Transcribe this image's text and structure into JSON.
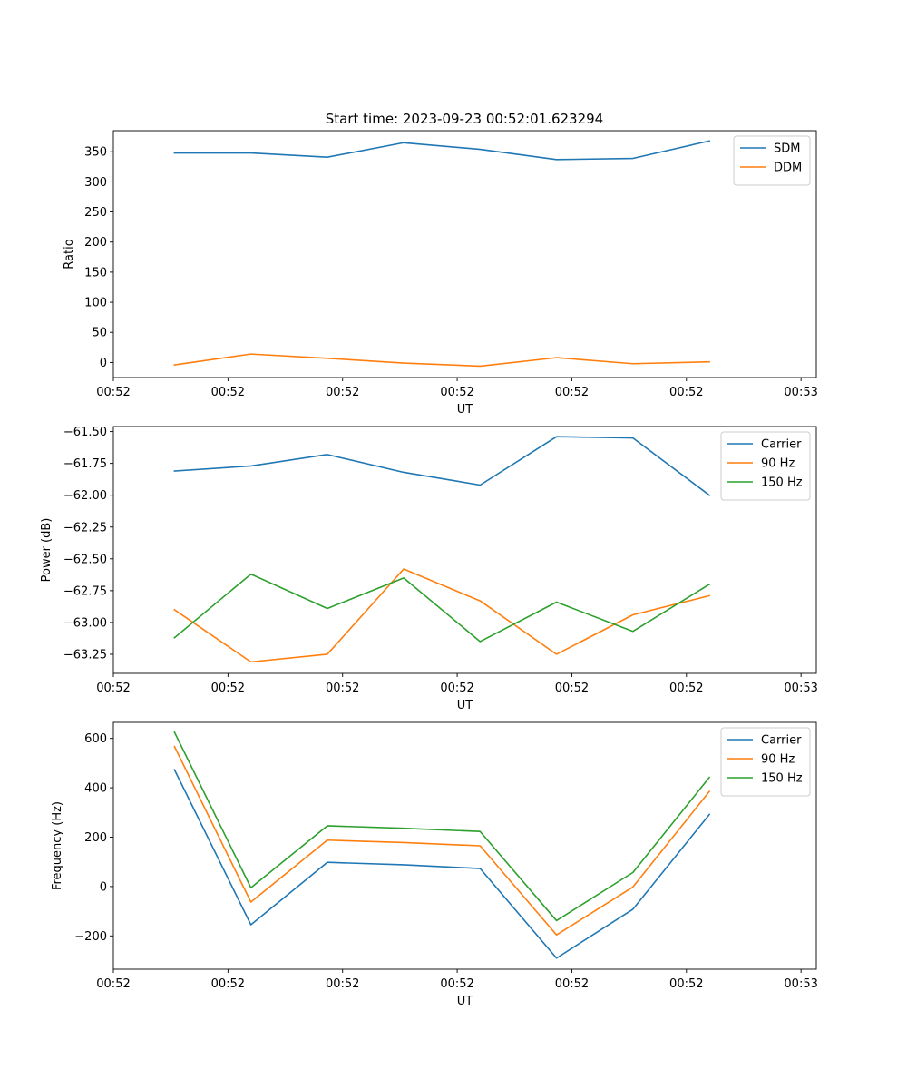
{
  "figure": {
    "title": "Start time: 2023-09-23 00:52:01.623294"
  },
  "colors": {
    "blue": "#1f77b4",
    "orange": "#ff7f0e",
    "green": "#2ca02c"
  },
  "chart_data": [
    {
      "type": "line",
      "title": "Start time: 2023-09-23 00:52:01.623294",
      "xlabel": "UT",
      "ylabel": "Ratio",
      "x": [
        1,
        2,
        3,
        4,
        5,
        6,
        7,
        8
      ],
      "xlim": [
        0.2,
        9.4
      ],
      "x_ticks": [
        0.2,
        1.7,
        3.2,
        4.7,
        6.2,
        7.7,
        9.2
      ],
      "x_tick_labels": [
        "00:52",
        "00:52",
        "00:52",
        "00:52",
        "00:52",
        "00:52",
        "00:53"
      ],
      "ylim": [
        -25,
        385
      ],
      "y_ticks": [
        0,
        50,
        100,
        150,
        200,
        250,
        300,
        350
      ],
      "y_tick_labels": [
        "0",
        "50",
        "100",
        "150",
        "200",
        "250",
        "300",
        "350"
      ],
      "legend_position": "top-right",
      "series": [
        {
          "name": "SDM",
          "color": "#1f77b4",
          "values": [
            348,
            348,
            341,
            365,
            354,
            337,
            339,
            368
          ]
        },
        {
          "name": "DDM",
          "color": "#ff7f0e",
          "values": [
            -4,
            14,
            7,
            -1,
            -6,
            8,
            -2,
            1
          ]
        }
      ]
    },
    {
      "type": "line",
      "title": "",
      "xlabel": "UT",
      "ylabel": "Power (dB)",
      "x": [
        1,
        2,
        3,
        4,
        5,
        6,
        7,
        8
      ],
      "xlim": [
        0.2,
        9.4
      ],
      "x_ticks": [
        0.2,
        1.7,
        3.2,
        4.7,
        6.2,
        7.7,
        9.2
      ],
      "x_tick_labels": [
        "00:52",
        "00:52",
        "00:52",
        "00:52",
        "00:52",
        "00:52",
        "00:53"
      ],
      "ylim": [
        -63.4,
        -61.46
      ],
      "y_ticks": [
        -63.25,
        -63.0,
        -62.75,
        -62.5,
        -62.25,
        -62.0,
        -61.75,
        -61.5
      ],
      "y_tick_labels": [
        "−63.25",
        "−63.00",
        "−62.75",
        "−62.50",
        "−62.25",
        "−62.00",
        "−61.75",
        "−61.50"
      ],
      "legend_position": "top-right",
      "series": [
        {
          "name": "Carrier",
          "color": "#1f77b4",
          "values": [
            -61.81,
            -61.77,
            -61.68,
            -61.82,
            -61.92,
            -61.54,
            -61.55,
            -62.0
          ]
        },
        {
          "name": "90 Hz",
          "color": "#ff7f0e",
          "values": [
            -62.9,
            -63.31,
            -63.25,
            -62.58,
            -62.83,
            -63.25,
            -62.94,
            -62.79
          ]
        },
        {
          "name": "150 Hz",
          "color": "#2ca02c",
          "values": [
            -63.12,
            -62.62,
            -62.89,
            -62.65,
            -63.15,
            -62.84,
            -63.07,
            -62.7
          ]
        }
      ]
    },
    {
      "type": "line",
      "title": "",
      "xlabel": "UT",
      "ylabel": "Frequency (Hz)",
      "x": [
        1,
        2,
        3,
        4,
        5,
        6,
        7,
        8
      ],
      "xlim": [
        0.2,
        9.4
      ],
      "x_ticks": [
        0.2,
        1.7,
        3.2,
        4.7,
        6.2,
        7.7,
        9.2
      ],
      "x_tick_labels": [
        "00:52",
        "00:52",
        "00:52",
        "00:52",
        "00:52",
        "00:52",
        "00:53"
      ],
      "ylim": [
        -335,
        665
      ],
      "y_ticks": [
        -200,
        0,
        200,
        400,
        600
      ],
      "y_tick_labels": [
        "−200",
        "0",
        "200",
        "400",
        "600"
      ],
      "legend_position": "top-right",
      "series": [
        {
          "name": "Carrier",
          "color": "#1f77b4",
          "values": [
            473,
            -155,
            98,
            88,
            73,
            -290,
            -92,
            292
          ]
        },
        {
          "name": "90 Hz",
          "color": "#ff7f0e",
          "values": [
            567,
            -63,
            188,
            178,
            165,
            -196,
            -2,
            385
          ]
        },
        {
          "name": "150 Hz",
          "color": "#2ca02c",
          "values": [
            625,
            -5,
            246,
            236,
            223,
            -138,
            57,
            442
          ]
        }
      ]
    }
  ]
}
